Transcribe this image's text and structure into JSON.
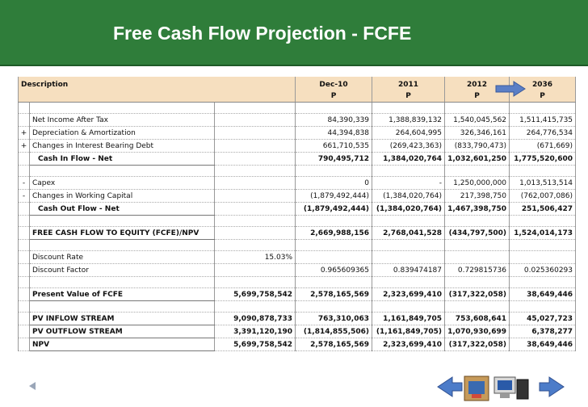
{
  "header": {
    "title": "Free Cash Flow Projection - FCFE"
  },
  "table": {
    "description": "Description",
    "columns": [
      {
        "label": "Dec-10",
        "sub": "P"
      },
      {
        "label": "2011",
        "sub": "P"
      },
      {
        "label": "2012",
        "sub": "P"
      },
      {
        "label": "2036",
        "sub": "P"
      }
    ],
    "sections": [
      [
        {
          "label": "Net Income After Tax",
          "values": [
            "84,390,339",
            "1,388,839,132",
            "1,540,045,562",
            "1,511,415,735"
          ]
        },
        {
          "sign": "+",
          "label": "Depreciation & Amortization",
          "values": [
            "44,394,838",
            "264,604,995",
            "326,346,161",
            "264,776,534"
          ]
        },
        {
          "sign": "+",
          "label": "Changes in Interest Bearing Debt",
          "values": [
            "661,710,535",
            "(269,423,363)",
            "(833,790,473)",
            "(671,669)"
          ]
        },
        {
          "label": "Cash In Flow - Net",
          "bold": true,
          "indent": true,
          "values": [
            "790,495,712",
            "1,384,020,764",
            "1,032,601,250",
            "1,775,520,600"
          ]
        }
      ],
      [
        {
          "sign": "-",
          "label": "Capex",
          "values": [
            "0",
            "-",
            "1,250,000,000",
            "1,013,513,514"
          ]
        },
        {
          "sign": "-",
          "label": "Changes in Working Capital",
          "values": [
            "(1,879,492,444)",
            "(1,384,020,764)",
            "217,398,750",
            "(762,007,086)"
          ]
        },
        {
          "label": "Cash Out Flow - Net",
          "bold": true,
          "indent": true,
          "values": [
            "(1,879,492,444)",
            "(1,384,020,764)",
            "1,467,398,750",
            "251,506,427"
          ]
        }
      ],
      [
        {
          "label": "FREE CASH FLOW TO EQUITY (FCFE)/NPV",
          "bold": true,
          "values": [
            "2,669,988,156",
            "2,768,041,528",
            "(434,797,500)",
            "1,524,014,173"
          ]
        }
      ],
      [
        {
          "label": "Discount Rate",
          "total": "15.03%"
        },
        {
          "label": "Discount Factor",
          "values": [
            "0.965609365",
            "0.839474187",
            "0.729815736",
            "0.025360293"
          ]
        }
      ],
      [
        {
          "label": "Present Value of FCFE",
          "bold": true,
          "total": "5,699,758,542",
          "values": [
            "2,578,165,569",
            "2,323,699,410",
            "(317,322,058)",
            "38,649,446"
          ]
        }
      ],
      [
        {
          "label": "PV INFLOW STREAM",
          "bold": true,
          "total": "9,090,878,733",
          "values": [
            "763,310,063",
            "1,161,849,705",
            "753,608,641",
            "45,027,723"
          ]
        },
        {
          "label": "PV OUTFLOW STREAM",
          "bold": true,
          "total": "3,391,120,190",
          "values": [
            "(1,814,855,506)",
            "(1,161,849,705)",
            "1,070,930,699",
            "6,378,277"
          ]
        },
        {
          "label": "NPV",
          "bold": true,
          "total": "5,699,758,542",
          "values": [
            "2,578,165,569",
            "2,323,699,410",
            "(317,322,058)",
            "38,649,446"
          ]
        }
      ]
    ]
  }
}
